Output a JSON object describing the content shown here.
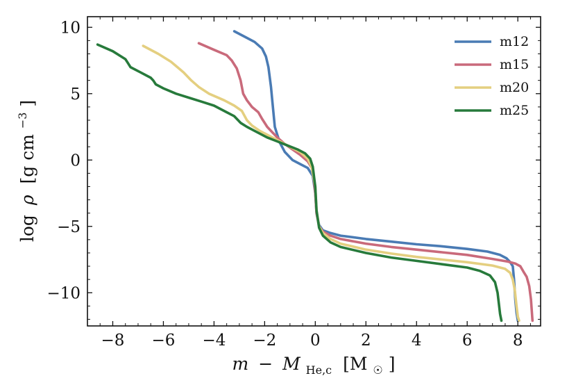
{
  "chart_data": {
    "type": "line",
    "title": "",
    "xlabel": "m − M_He,c [M☉]",
    "xlabel_parts": {
      "m": "m",
      "minus": "−",
      "M": "M",
      "sub": "He,c",
      "unit_open": "[M",
      "unit_sub": "☉",
      "unit_close": "]"
    },
    "ylabel": "log ρ [g cm⁻³]",
    "ylabel_parts": {
      "log": "log",
      "rho": "ρ",
      "unit_open": "[g cm",
      "unit_sup": "−3",
      "unit_close": "]"
    },
    "xlim": [
      -9,
      8.9
    ],
    "ylim": [
      -12.5,
      10.8
    ],
    "xticks": [
      -8,
      -6,
      -4,
      -2,
      0,
      2,
      4,
      6,
      8
    ],
    "xtick_labels": [
      "−8",
      "−6",
      "−4",
      "−2",
      "0",
      "2",
      "4",
      "6",
      "8"
    ],
    "yticks": [
      10,
      5,
      0,
      -5,
      -10
    ],
    "ytick_labels": [
      "10",
      "5",
      "0",
      "−5",
      "−10"
    ],
    "grid": false,
    "legend_position": "top-right",
    "series": [
      {
        "name": "m12",
        "color": "#4a7bb4",
        "x": [
          -3.2,
          -2.8,
          -2.4,
          -2.1,
          -1.95,
          -1.85,
          -1.75,
          -1.7,
          -1.6,
          -1.5,
          -1.4,
          -1.2,
          -0.9,
          -0.6,
          -0.3,
          -0.1,
          0.0,
          0.05,
          0.15,
          0.3,
          0.6,
          1.0,
          2.0,
          3.0,
          4.0,
          5.0,
          6.0,
          6.8,
          7.3,
          7.55,
          7.7,
          7.8,
          7.85,
          7.9,
          7.95,
          8.0
        ],
        "y": [
          9.7,
          9.3,
          8.9,
          8.4,
          7.8,
          7.0,
          5.5,
          4.5,
          2.5,
          1.9,
          1.3,
          0.6,
          0.0,
          -0.3,
          -0.6,
          -1.2,
          -2.5,
          -4.0,
          -4.9,
          -5.3,
          -5.5,
          -5.7,
          -5.95,
          -6.15,
          -6.35,
          -6.5,
          -6.7,
          -6.9,
          -7.15,
          -7.4,
          -7.7,
          -8.0,
          -9.0,
          -10.5,
          -11.5,
          -12.1
        ]
      },
      {
        "name": "m15",
        "color": "#c96a7b",
        "x": [
          -4.6,
          -4.0,
          -3.5,
          -3.3,
          -3.1,
          -2.95,
          -2.85,
          -2.7,
          -2.5,
          -2.25,
          -2.1,
          -1.9,
          -1.7,
          -1.5,
          -1.2,
          -0.9,
          -0.6,
          -0.3,
          -0.1,
          0.0,
          0.05,
          0.15,
          0.3,
          0.6,
          1.0,
          2.0,
          3.0,
          4.0,
          5.0,
          6.0,
          7.0,
          7.6,
          7.9,
          8.1,
          8.25,
          8.35,
          8.45,
          8.52,
          8.58
        ],
        "y": [
          8.8,
          8.3,
          7.9,
          7.5,
          6.9,
          6.0,
          5.0,
          4.5,
          4.0,
          3.6,
          3.1,
          2.5,
          2.1,
          1.7,
          1.2,
          0.8,
          0.4,
          -0.1,
          -0.7,
          -2.5,
          -4.0,
          -5.0,
          -5.4,
          -5.7,
          -5.95,
          -6.3,
          -6.55,
          -6.75,
          -6.95,
          -7.15,
          -7.45,
          -7.65,
          -7.8,
          -8.0,
          -8.5,
          -8.8,
          -9.5,
          -10.5,
          -12.1
        ]
      },
      {
        "name": "m20",
        "color": "#e4cf80",
        "x": [
          -6.8,
          -6.2,
          -5.7,
          -5.2,
          -4.9,
          -4.6,
          -4.2,
          -3.6,
          -3.2,
          -2.9,
          -2.7,
          -2.5,
          -2.2,
          -1.8,
          -1.4,
          -1.0,
          -0.6,
          -0.3,
          -0.15,
          0.0,
          0.05,
          0.15,
          0.3,
          0.6,
          1.0,
          2.0,
          3.0,
          4.0,
          5.0,
          6.0,
          7.0,
          7.5,
          7.7,
          7.8,
          7.88,
          7.95,
          8.0,
          8.05
        ],
        "y": [
          8.6,
          8.0,
          7.4,
          6.6,
          6.0,
          5.5,
          5.0,
          4.5,
          4.1,
          3.7,
          3.0,
          2.6,
          2.2,
          1.8,
          1.4,
          1.0,
          0.6,
          0.1,
          -0.5,
          -2.0,
          -3.8,
          -5.0,
          -5.5,
          -5.95,
          -6.3,
          -6.75,
          -7.05,
          -7.3,
          -7.5,
          -7.7,
          -7.95,
          -8.2,
          -8.5,
          -9.0,
          -9.8,
          -11.0,
          -11.8,
          -12.1
        ]
      },
      {
        "name": "m25",
        "color": "#277a3b",
        "x": [
          -8.6,
          -8.0,
          -7.5,
          -7.4,
          -7.3,
          -6.9,
          -6.5,
          -6.4,
          -6.3,
          -6.0,
          -5.5,
          -5.0,
          -4.5,
          -4.0,
          -3.5,
          -3.2,
          -3.05,
          -2.95,
          -2.7,
          -2.3,
          -1.9,
          -1.5,
          -1.1,
          -0.7,
          -0.4,
          -0.2,
          -0.1,
          0.0,
          0.05,
          0.15,
          0.3,
          0.6,
          1.0,
          2.0,
          3.0,
          4.0,
          5.0,
          6.0,
          6.5,
          6.9,
          7.1,
          7.2,
          7.25,
          7.3,
          7.35
        ],
        "y": [
          8.7,
          8.2,
          7.6,
          7.3,
          7.0,
          6.6,
          6.2,
          6.0,
          5.7,
          5.4,
          5.0,
          4.7,
          4.4,
          4.1,
          3.6,
          3.3,
          3.0,
          2.8,
          2.5,
          2.1,
          1.7,
          1.4,
          1.1,
          0.8,
          0.5,
          0.1,
          -0.5,
          -2.0,
          -3.8,
          -5.1,
          -5.7,
          -6.2,
          -6.55,
          -7.0,
          -7.35,
          -7.6,
          -7.85,
          -8.1,
          -8.35,
          -8.7,
          -9.2,
          -10.0,
          -10.8,
          -11.6,
          -12.1
        ]
      }
    ]
  }
}
